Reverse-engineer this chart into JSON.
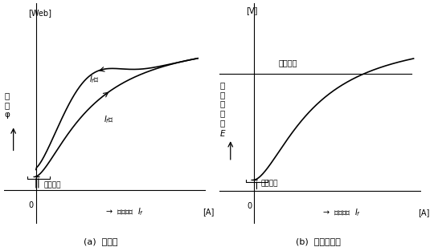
{
  "fig_width": 5.4,
  "fig_height": 3.08,
  "dpi": 100,
  "background": "#ffffff",
  "text_color": "#000000",
  "line_color": "#000000",
  "subplot_a": {
    "unit_label": "[Web]",
    "ylabel": "磁\n束\nφ",
    "xlabel_arrow": "→  界磁電流  $I_f$",
    "xlabel_unit": "[A]",
    "origin_label": "0",
    "residual_label": "残留磁束",
    "curve1_label_text": "$I_f$減",
    "curve2_label_text": "$I_f$増",
    "caption": "(a)  磁　束"
  },
  "subplot_b": {
    "unit_label": "[V]",
    "ylabel": "誘\n導\n起\n電\n力\n$E$",
    "xlabel_arrow": "→  界磁電流  $I_f$",
    "xlabel_unit": "[A]",
    "origin_label": "0",
    "residual_label": "残留電圧",
    "rated_label": "定格電圧",
    "caption": "(b)  誘導起電力"
  }
}
